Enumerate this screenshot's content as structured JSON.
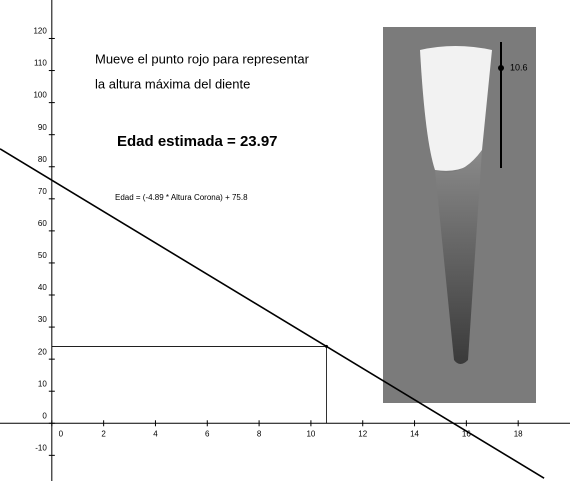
{
  "chart_data": {
    "type": "line",
    "annotations": [
      "Mueve el punto rojo para representar",
      "la altura máxima del diente"
    ],
    "result": "Edad estimada = 23.97",
    "equation": "Edad = (-4.89 * Altura Corona) + 75.8",
    "scale_label": "10.6",
    "x": [
      -2,
      19
    ],
    "values": [
      85.58,
      -17.11
    ],
    "color": "#000000",
    "point": {
      "x": 10.6,
      "y": 23.97
    },
    "xlim": [
      -2,
      20
    ],
    "ylim": [
      -18,
      132
    ],
    "xticks": [
      0,
      2,
      4,
      6,
      8,
      10,
      12,
      14,
      16,
      18
    ],
    "yticks": [
      -10,
      0,
      10,
      20,
      30,
      40,
      50,
      60,
      70,
      80,
      90,
      100,
      110,
      120
    ]
  }
}
